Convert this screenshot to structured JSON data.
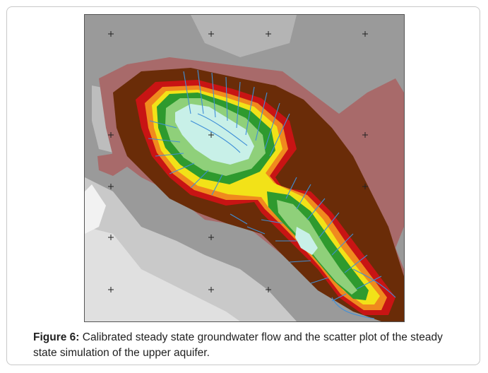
{
  "figure": {
    "label": "Figure 6:",
    "caption": " Calibrated steady state groundwater flow and the scatter plot of the steady state simulation of the upper aquifer."
  },
  "map": {
    "grid_marker": "+",
    "colors": {
      "background_gray": "#9a9a9a",
      "light_gray": "#cfcfcf",
      "pale_gray": "#e2e2e2",
      "mauve": "#a86a6a",
      "dark_brown": "#6a2c08",
      "red": "#c81414",
      "orange": "#f08a1e",
      "yellow": "#f2e218",
      "green": "#2e9a2e",
      "light_green": "#8fd07a",
      "pale_cyan": "#c8f0e8",
      "flow_vectors": "#3f8fd8"
    }
  }
}
